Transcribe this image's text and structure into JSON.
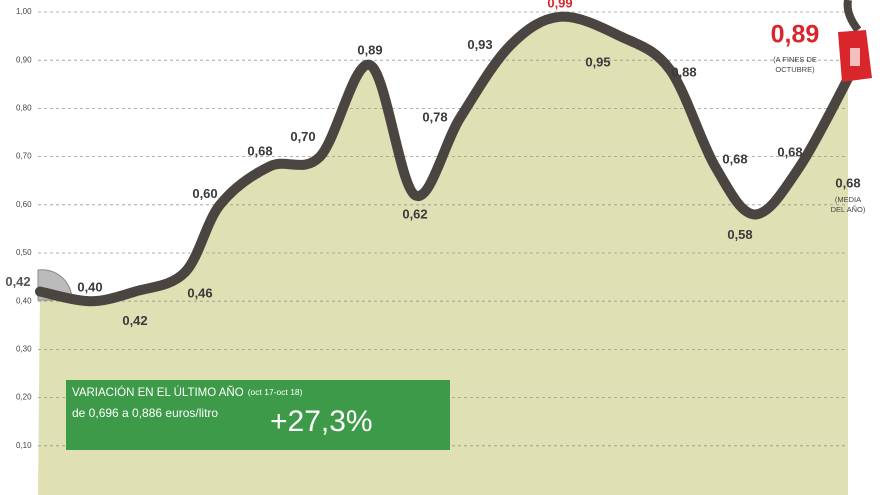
{
  "chart_data": {
    "type": "line",
    "categories": [
      null,
      null,
      null,
      null,
      null,
      null,
      null,
      null,
      null,
      null,
      null,
      null,
      null,
      null,
      null,
      null,
      null,
      null
    ],
    "values": [
      0.42,
      0.4,
      0.42,
      0.46,
      0.6,
      0.68,
      0.7,
      0.89,
      0.62,
      0.78,
      0.93,
      0.99,
      0.95,
      0.88,
      0.68,
      0.58,
      0.68,
      0.89
    ],
    "value_labels": [
      "0,42",
      "0,40",
      "0,42",
      "0,46",
      "0,60",
      "0,68",
      "0,70",
      "0,89",
      "0,62",
      "0,78",
      "0,93",
      "0,99",
      "0,95",
      "0,88",
      "0,68",
      "0,58",
      "0,68",
      "0,89"
    ],
    "color": "#4a4540",
    "area_color": "#dfe0b4",
    "highlight_color": "#d9262b",
    "ylim": [
      0,
      1.0
    ],
    "yticks": [
      {
        "value": 0.1,
        "label": "0,10"
      },
      {
        "value": 0.2,
        "label": "0,20"
      },
      {
        "value": 0.3,
        "label": "0,30"
      },
      {
        "value": 0.4,
        "label": "0,40"
      },
      {
        "value": 0.5,
        "label": "0,50"
      },
      {
        "value": 0.6,
        "label": "0,60"
      },
      {
        "value": 0.7,
        "label": "0,70"
      },
      {
        "value": 0.8,
        "label": "0,80"
      },
      {
        "value": 0.9,
        "label": "0,90"
      },
      {
        "value": 1.0,
        "label": "1,00"
      }
    ],
    "grid": true,
    "end_note": [
      "(A FINES DE",
      "OCTUBRE)"
    ],
    "average": {
      "value": 0.68,
      "label": "0,68",
      "note": [
        "(MEDIA",
        "DEL AÑO)"
      ]
    },
    "box": {
      "title": "VARIACIÓN EN EL ÚLTIMO AÑO",
      "period": "(oct 17-oct 18)",
      "text": "de 0,696 a 0,886 euros/litro",
      "change": "+27,3%",
      "color": "#3c9a48"
    }
  }
}
